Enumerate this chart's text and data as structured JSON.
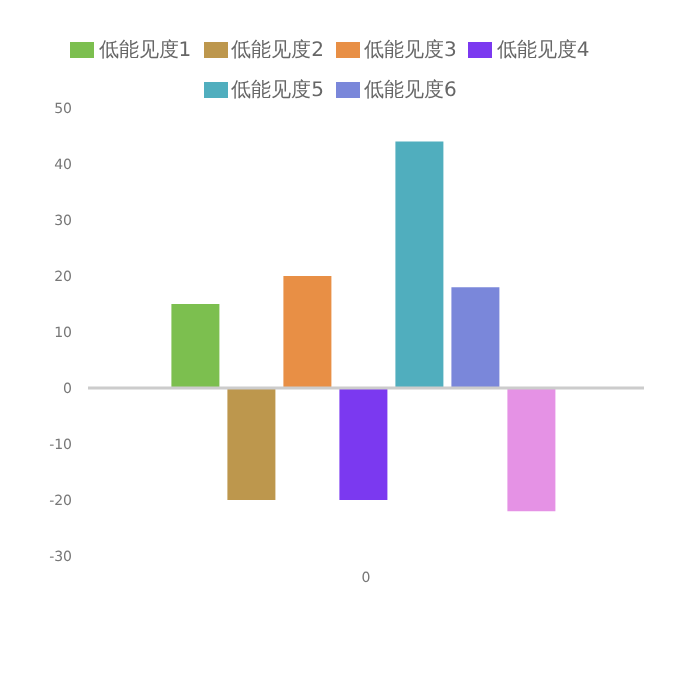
{
  "chart_data": {
    "type": "bar",
    "categories": [
      "0"
    ],
    "series": [
      {
        "name": "低能见度1",
        "color": "#7cbf4f",
        "values": [
          15
        ]
      },
      {
        "name": "低能见度2",
        "color": "#bd974d",
        "values": [
          -20
        ]
      },
      {
        "name": "低能见度3",
        "color": "#e88f45",
        "values": [
          20
        ]
      },
      {
        "name": "低能见度4",
        "color": "#7b39f0",
        "values": [
          -20
        ]
      },
      {
        "name": "低能见度5",
        "color": "#50aebe",
        "values": [
          44
        ]
      },
      {
        "name": "低能见度6",
        "color": "#7a87da",
        "values": [
          18
        ]
      },
      {
        "color": "#e592e5",
        "values": [
          -22
        ]
      }
    ],
    "ylim": [
      -30,
      50
    ],
    "yticks": [
      -30,
      -20,
      -10,
      0,
      10,
      20,
      30,
      40,
      50
    ],
    "grid": false,
    "ref_lines": [
      {
        "axis": "y",
        "value": 0,
        "color": "#cccccc"
      }
    ],
    "legend": "top"
  }
}
